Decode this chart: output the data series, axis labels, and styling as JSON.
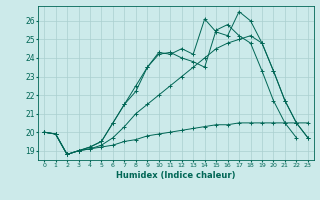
{
  "xlabel": "Humidex (Indice chaleur)",
  "bg_color": "#cceaea",
  "grid_color": "#aacfcf",
  "line_color": "#006655",
  "xlim": [
    -0.5,
    23.5
  ],
  "ylim": [
    18.5,
    26.8
  ],
  "xticks": [
    0,
    1,
    2,
    3,
    4,
    5,
    6,
    7,
    8,
    9,
    10,
    11,
    12,
    13,
    14,
    15,
    16,
    17,
    18,
    19,
    20,
    21,
    22,
    23
  ],
  "yticks": [
    19,
    20,
    21,
    22,
    23,
    24,
    25,
    26
  ],
  "series": [
    [
      20.0,
      19.9,
      18.8,
      19.0,
      19.1,
      19.2,
      19.3,
      19.5,
      19.6,
      19.8,
      19.9,
      20.0,
      20.1,
      20.2,
      20.3,
      20.4,
      20.4,
      20.5,
      20.5,
      20.5,
      20.5,
      20.5,
      20.5,
      20.5
    ],
    [
      20.0,
      19.9,
      18.8,
      19.0,
      19.1,
      19.3,
      19.7,
      20.3,
      21.0,
      21.5,
      22.0,
      22.5,
      23.0,
      23.5,
      24.0,
      24.5,
      24.8,
      25.0,
      25.2,
      24.8,
      23.3,
      21.7,
      20.5,
      19.7
    ],
    [
      20.0,
      19.9,
      18.8,
      19.0,
      19.2,
      19.5,
      20.5,
      21.5,
      22.2,
      23.5,
      24.2,
      24.3,
      24.0,
      23.8,
      23.5,
      25.5,
      25.8,
      25.2,
      24.8,
      23.3,
      21.7,
      20.5,
      19.7,
      null
    ],
    [
      20.0,
      19.9,
      18.8,
      19.0,
      19.2,
      19.5,
      20.5,
      21.5,
      22.5,
      23.5,
      24.3,
      24.2,
      24.5,
      24.2,
      26.1,
      25.4,
      25.2,
      26.5,
      26.0,
      24.8,
      23.3,
      21.7,
      20.5,
      19.7
    ]
  ]
}
